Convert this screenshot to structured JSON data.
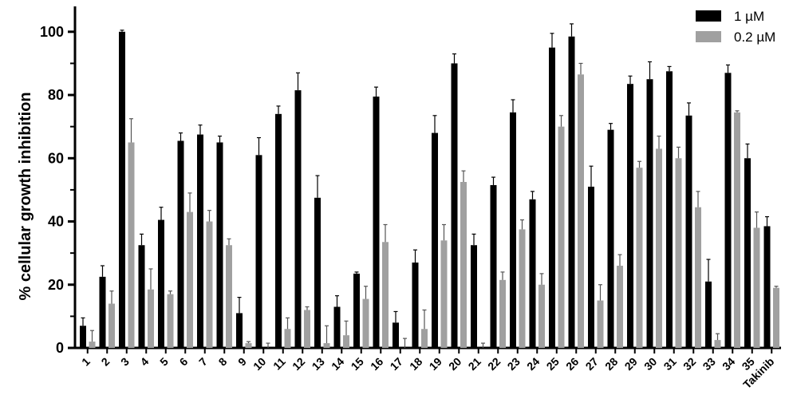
{
  "chart_data": {
    "type": "bar",
    "title": "",
    "xlabel": "",
    "ylabel": "% cellular growth inhibition",
    "ylim": [
      0,
      105
    ],
    "yticks": [
      0,
      20,
      40,
      60,
      80,
      100
    ],
    "grid": false,
    "legend_position": "top-right",
    "error_bars": true,
    "categories": [
      "1",
      "2",
      "3",
      "4",
      "5",
      "6",
      "7",
      "8",
      "9",
      "10",
      "11",
      "12",
      "13",
      "14",
      "15",
      "16",
      "17",
      "18",
      "19",
      "20",
      "21",
      "22",
      "23",
      "24",
      "25",
      "26",
      "27",
      "28",
      "29",
      "30",
      "31",
      "32",
      "33",
      "34",
      "35",
      "Takinib"
    ],
    "series": [
      {
        "name": "1 µM",
        "color": "#000000",
        "values": [
          7,
          22.5,
          100,
          32.5,
          40.5,
          65.5,
          67.5,
          65,
          11,
          61,
          74,
          81.5,
          47.5,
          13,
          23.5,
          79.5,
          8,
          27,
          68,
          90,
          32.5,
          51.5,
          74.5,
          47,
          95,
          98.5,
          51,
          69,
          83.5,
          85,
          87.5,
          73.5,
          21,
          87,
          60,
          38.5
        ],
        "errors": [
          2.5,
          3.5,
          0.5,
          3.5,
          4,
          2.5,
          3,
          2,
          5,
          5.5,
          2.5,
          5.5,
          7,
          3.5,
          0.5,
          3,
          3.5,
          4,
          5.5,
          3,
          3.5,
          2.5,
          4,
          2.5,
          4.5,
          4,
          6.5,
          2,
          2.5,
          5.5,
          1.5,
          4,
          7,
          2.5,
          4.5,
          3
        ]
      },
      {
        "name": "0.2 µM",
        "color": "#a0a0a0",
        "values": [
          2,
          14,
          65,
          18.5,
          17,
          43,
          40,
          32.5,
          1.5,
          0,
          6,
          12,
          1.5,
          4,
          15.5,
          33.5,
          0,
          6,
          34,
          52.5,
          0,
          21.5,
          37.5,
          20,
          70,
          86.5,
          15,
          26,
          57,
          63,
          60,
          44.5,
          2.5,
          74.5,
          38,
          19
        ],
        "errors": [
          3.5,
          4,
          7.5,
          6.5,
          1,
          6,
          3.5,
          2,
          0.5,
          1.5,
          3.5,
          1,
          5.5,
          4.5,
          4,
          5.5,
          3,
          6,
          5,
          3.5,
          1.5,
          2.5,
          3,
          3.5,
          3.5,
          3.5,
          5,
          3.5,
          2,
          4,
          3.5,
          5,
          2,
          0.5,
          5,
          0.5
        ]
      }
    ]
  }
}
